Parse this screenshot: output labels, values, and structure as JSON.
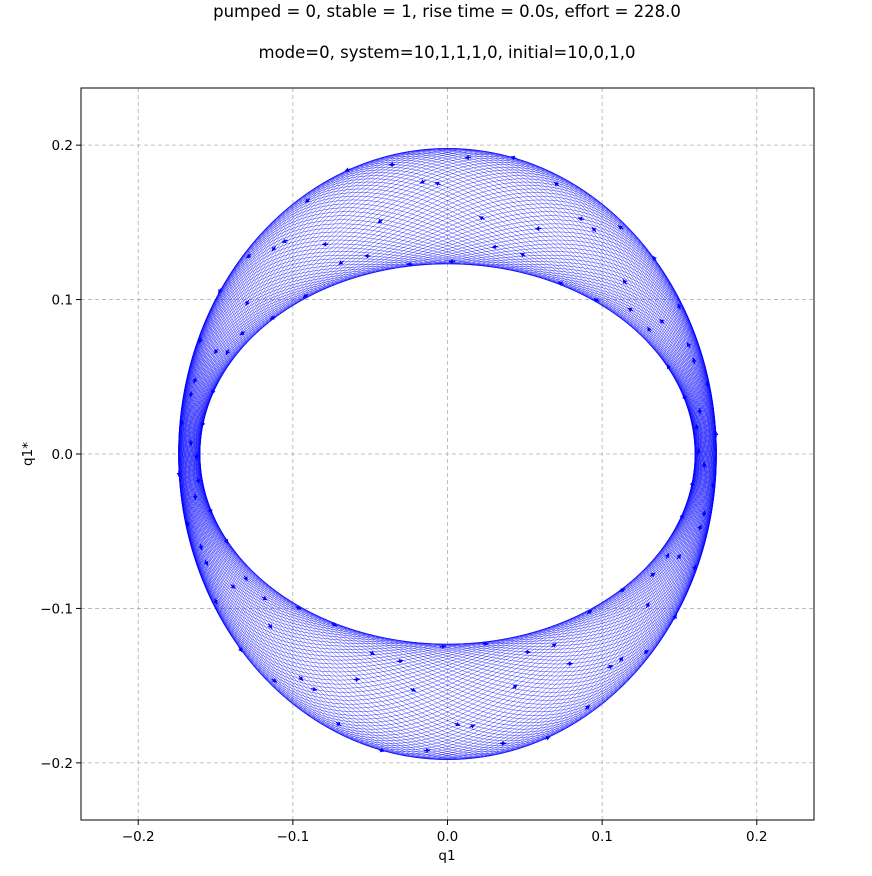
{
  "chart_data": {
    "type": "line",
    "title_line1": "pumped = 0, stable = 1, rise time = 0.0s, effort = 228.0",
    "title_line2": "mode=0, system=10,1,1,1,0, initial=10,0,1,0",
    "xlabel": "q1",
    "ylabel": "q1*",
    "xlim": [
      -0.237,
      0.237
    ],
    "ylim": [
      -0.237,
      0.237
    ],
    "x_ticks": [
      -0.2,
      -0.1,
      0.0,
      0.1,
      0.2
    ],
    "y_ticks": [
      -0.2,
      -0.1,
      0.0,
      0.1,
      0.2
    ],
    "x_tick_labels": [
      "−0.2",
      "−0.1",
      "0.0",
      "0.1",
      "0.2"
    ],
    "y_tick_labels": [
      "−0.2",
      "−0.1",
      "0.0",
      "0.1",
      "0.2"
    ],
    "grid": true,
    "series": [
      {
        "style": "trajectory with direction arrows",
        "color": "#0000ff",
        "outer_envelope": {
          "x_half_width": 0.174,
          "y_half_height": 0.198
        },
        "inner_envelope": {
          "x_half_width": 0.16,
          "y_half_height": 0.123
        },
        "precession_loops": 80,
        "direction_arrows": 110
      }
    ]
  }
}
